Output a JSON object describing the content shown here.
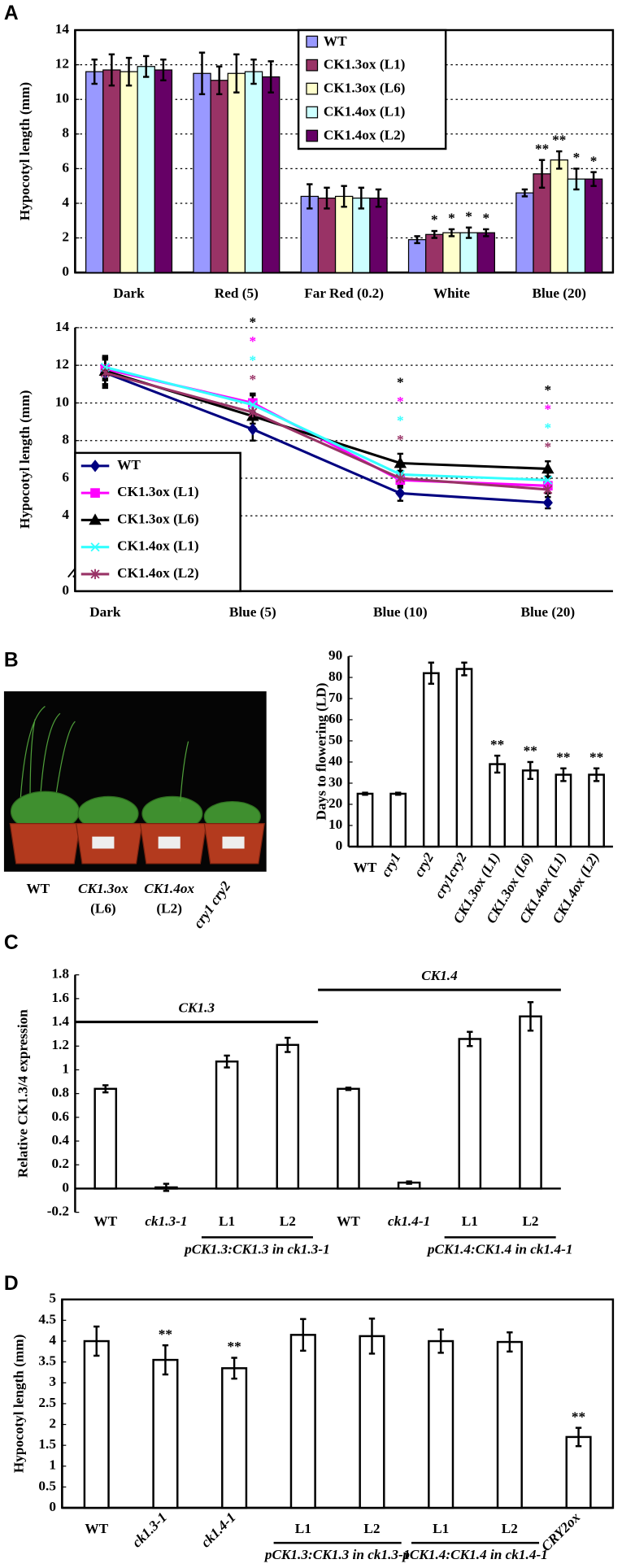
{
  "figure": {
    "panels": [
      "A",
      "B",
      "C",
      "D"
    ],
    "photo_labels": [
      "WT",
      "CK1.3ox",
      "(L6)",
      "CK1.4ox",
      "(L2)",
      "cry1 cry2"
    ]
  },
  "chart_data": [
    {
      "type": "bar",
      "ylabel": "Hypocotyl length (mm)",
      "categories": [
        "Dark",
        "Red (5)",
        "Far Red (0.2)",
        "White",
        "Blue (20)"
      ],
      "series": [
        {
          "name": "WT",
          "color": "#9999ff",
          "values": [
            11.6,
            11.5,
            4.4,
            1.9,
            4.6
          ],
          "errors": [
            0.7,
            1.2,
            0.7,
            0.2,
            0.2
          ],
          "annotations": [
            null,
            null,
            null,
            null,
            null
          ]
        },
        {
          "name": "CK1.3ox (L1)",
          "color": "#993366",
          "values": [
            11.7,
            11.1,
            4.3,
            2.2,
            5.7
          ],
          "errors": [
            0.9,
            0.8,
            0.6,
            0.2,
            0.8
          ],
          "annotations": [
            null,
            null,
            null,
            "*",
            "**"
          ]
        },
        {
          "name": "CK1.3ox (L6)",
          "color": "#ffffcc",
          "values": [
            11.6,
            11.5,
            4.4,
            2.3,
            6.5
          ],
          "errors": [
            0.8,
            1.1,
            0.6,
            0.2,
            0.5
          ],
          "annotations": [
            null,
            null,
            null,
            "*",
            "**"
          ]
        },
        {
          "name": "CK1.4ox (L1)",
          "color": "#ccffff",
          "values": [
            11.9,
            11.6,
            4.3,
            2.3,
            5.4
          ],
          "errors": [
            0.6,
            0.7,
            0.6,
            0.3,
            0.6
          ],
          "annotations": [
            null,
            null,
            null,
            "*",
            "*"
          ]
        },
        {
          "name": "CK1.4ox (L2)",
          "color": "#660066",
          "values": [
            11.7,
            11.3,
            4.3,
            2.3,
            5.4
          ],
          "errors": [
            0.6,
            0.9,
            0.5,
            0.2,
            0.4
          ],
          "annotations": [
            null,
            null,
            null,
            "*",
            "*"
          ]
        }
      ],
      "ylim": [
        0,
        14
      ],
      "yticks": [
        0,
        2,
        4,
        6,
        8,
        10,
        12,
        14
      ],
      "grid": true,
      "legend": "upper center"
    },
    {
      "type": "line",
      "ylabel": "Hypocotyl length (mm)",
      "categories": [
        "Dark",
        "Blue (5)",
        "Blue (10)",
        "Blue (20)"
      ],
      "series": [
        {
          "name": "WT",
          "color": "#000080",
          "marker": "diamond",
          "values": [
            11.6,
            8.6,
            5.2,
            4.7
          ],
          "errors": [
            0.7,
            0.6,
            0.4,
            0.3
          ],
          "annotations": [
            null,
            null,
            null,
            null
          ]
        },
        {
          "name": "CK1.3ox (L1)",
          "color": "#ff00ff",
          "marker": "square",
          "values": [
            11.8,
            10.0,
            5.9,
            5.6
          ],
          "errors": [
            0.6,
            0.5,
            0.4,
            0.4
          ],
          "annotations": [
            null,
            "*",
            "*",
            "*"
          ]
        },
        {
          "name": "CK1.3ox (L6)",
          "color": "#000000",
          "marker": "triangle",
          "values": [
            11.7,
            9.3,
            6.8,
            6.5
          ],
          "errors": [
            0.7,
            0.6,
            0.5,
            0.4
          ],
          "annotations": [
            null,
            "*",
            "*",
            "*"
          ]
        },
        {
          "name": "CK1.4ox (L1)",
          "color": "#33ffff",
          "marker": "x",
          "values": [
            11.9,
            9.9,
            6.2,
            5.9
          ],
          "errors": [
            0.6,
            0.5,
            0.4,
            0.4
          ],
          "annotations": [
            null,
            "*",
            "*",
            "*"
          ]
        },
        {
          "name": "CK1.4ox (L2)",
          "color": "#993366",
          "marker": "star",
          "values": [
            11.6,
            9.5,
            6.0,
            5.4
          ],
          "errors": [
            0.8,
            0.6,
            0.4,
            0.4
          ],
          "annotations": [
            null,
            "*",
            "*",
            "*"
          ]
        }
      ],
      "ylim": [
        0,
        14
      ],
      "yticks": [
        0,
        4,
        6,
        8,
        10,
        12,
        14
      ],
      "grid": true,
      "legend": "lower left"
    },
    {
      "type": "bar",
      "ylabel": "Days to flowering (LD)",
      "categories": [
        "WT",
        "cry1",
        "cry2",
        "cry1cry2",
        "CK1.3ox (L1)",
        "CK1.3ox (L6)",
        "CK1.4ox (L1)",
        "CK1.4ox (L2)"
      ],
      "values": [
        25,
        25,
        82,
        84,
        39,
        36,
        34,
        34
      ],
      "errors": [
        0.5,
        0.5,
        5,
        3,
        4,
        4,
        3,
        3
      ],
      "annotations": [
        null,
        null,
        null,
        null,
        "**",
        "**",
        "**",
        "**"
      ],
      "color": "#ffffff",
      "ylim": [
        0,
        90
      ],
      "yticks": [
        0,
        10,
        20,
        30,
        40,
        50,
        60,
        70,
        80,
        90
      ]
    },
    {
      "type": "bar",
      "ylabel": "Relative CK1.3/4 expression",
      "categories": [
        "WT",
        "ck1.3-1",
        "L1",
        "L2",
        "WT",
        "ck1.4-1",
        "L1",
        "L2"
      ],
      "values": [
        0.84,
        0.01,
        1.07,
        1.21,
        0.84,
        0.05,
        1.26,
        1.45
      ],
      "errors": [
        0.03,
        0.03,
        0.05,
        0.06,
        0.01,
        0.01,
        0.06,
        0.12
      ],
      "top_groups": [
        "CK1.3",
        "CK1.4"
      ],
      "bottom_groups": [
        "pCK1.3:CK1.3 in ck1.3-1",
        "pCK1.4:CK1.4 in ck1.4-1"
      ],
      "color": "#ffffff",
      "ylim": [
        -0.2,
        1.8
      ],
      "yticks": [
        -0.2,
        0,
        0.2,
        0.4,
        0.6,
        0.8,
        1,
        1.2,
        1.4,
        1.6,
        1.8
      ]
    },
    {
      "type": "bar",
      "ylabel": "Hypocotyl length (mm)",
      "categories": [
        "WT",
        "ck1.3-1",
        "ck1.4-1",
        "L1",
        "L2",
        "L1",
        "L2",
        "CRY2ox"
      ],
      "values": [
        4.0,
        3.55,
        3.35,
        4.15,
        4.12,
        4.0,
        3.98,
        1.7
      ],
      "errors": [
        0.35,
        0.35,
        0.25,
        0.38,
        0.42,
        0.28,
        0.23,
        0.22
      ],
      "annotations": [
        null,
        "**",
        "**",
        null,
        null,
        null,
        null,
        "**"
      ],
      "bottom_groups": [
        "pCK1.3:CK1.3 in ck1.3-1",
        "pCK1.4:CK1.4 in ck1.4-1"
      ],
      "color": "#ffffff",
      "ylim": [
        0,
        5
      ],
      "yticks": [
        0,
        0.5,
        1,
        1.5,
        2,
        2.5,
        3,
        3.5,
        4,
        4.5,
        5
      ]
    }
  ]
}
